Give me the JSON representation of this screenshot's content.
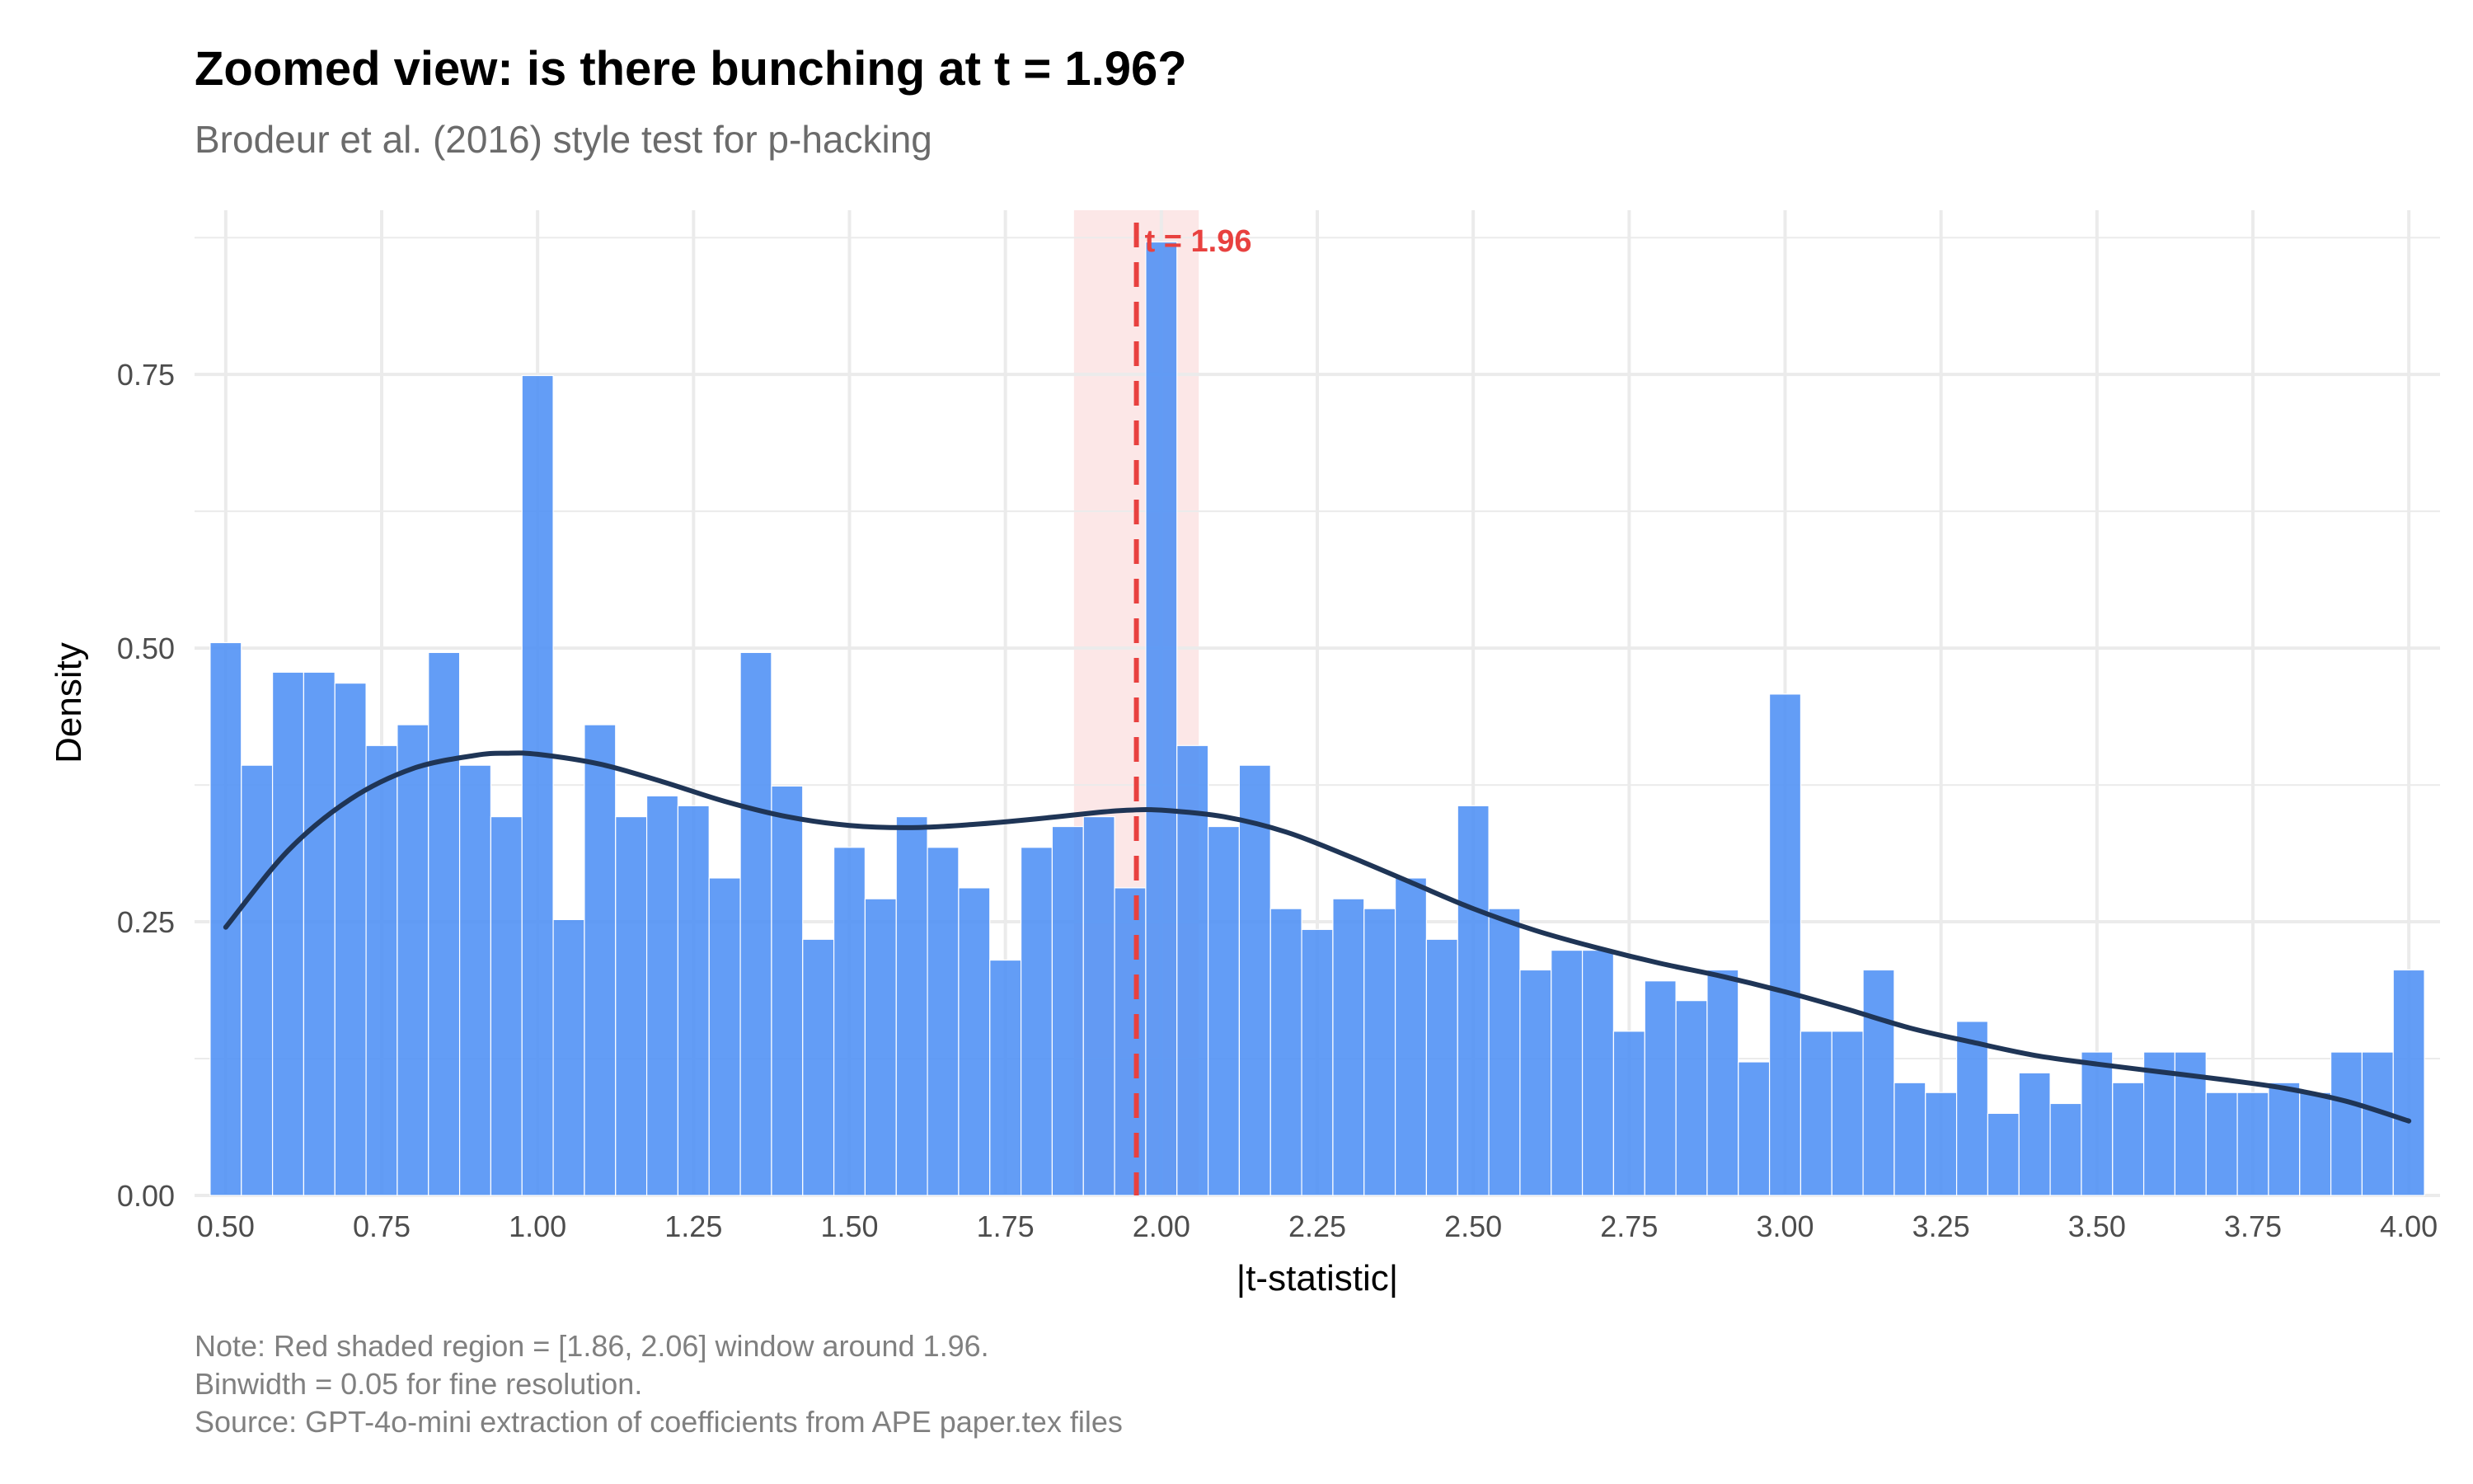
{
  "chart_data": {
    "type": "bar",
    "title": "Zoomed view: is there bunching at t = 1.96?",
    "subtitle": "Brodeur et al. (2016) style test for p-hacking",
    "xlabel": "|t-statistic|",
    "ylabel": "Density",
    "xlim": [
      0.45,
      4.05
    ],
    "ylim": [
      0,
      0.9
    ],
    "x_ticks": [
      0.5,
      0.75,
      1.0,
      1.25,
      1.5,
      1.75,
      2.0,
      2.25,
      2.5,
      2.75,
      3.0,
      3.25,
      3.5,
      3.75,
      4.0
    ],
    "x_tick_labels": [
      "0.50",
      "0.75",
      "1.00",
      "1.25",
      "1.50",
      "1.75",
      "2.00",
      "2.25",
      "2.50",
      "2.75",
      "3.00",
      "3.25",
      "3.50",
      "3.75",
      "4.00"
    ],
    "y_ticks": [
      0,
      0.25,
      0.5,
      0.75
    ],
    "y_tick_labels": [
      "0.00",
      "0.25",
      "0.50",
      "0.75"
    ],
    "binwidth": 0.05,
    "bin_start": 0.475,
    "values": [
      0.505,
      0.393,
      0.478,
      0.478,
      0.468,
      0.411,
      0.43,
      0.496,
      0.393,
      0.346,
      0.749,
      0.252,
      0.43,
      0.346,
      0.365,
      0.356,
      0.29,
      0.496,
      0.374,
      0.234,
      0.318,
      0.271,
      0.346,
      0.318,
      0.281,
      0.215,
      0.318,
      0.337,
      0.346,
      0.281,
      0.871,
      0.411,
      0.337,
      0.393,
      0.262,
      0.243,
      0.271,
      0.262,
      0.29,
      0.234,
      0.356,
      0.262,
      0.206,
      0.224,
      0.224,
      0.15,
      0.196,
      0.178,
      0.206,
      0.122,
      0.458,
      0.15,
      0.15,
      0.206,
      0.103,
      0.094,
      0.159,
      0.075,
      0.112,
      0.084,
      0.131,
      0.103,
      0.131,
      0.131,
      0.094,
      0.094,
      0.103,
      0.094,
      0.131,
      0.131,
      0.206
    ],
    "density_curve": {
      "x": [
        0.5,
        0.6,
        0.7,
        0.8,
        0.9,
        0.95,
        1.0,
        1.1,
        1.2,
        1.3,
        1.4,
        1.5,
        1.6,
        1.7,
        1.8,
        1.9,
        1.95,
        2.0,
        2.1,
        2.2,
        2.3,
        2.4,
        2.5,
        2.6,
        2.7,
        2.8,
        2.9,
        3.0,
        3.1,
        3.2,
        3.3,
        3.4,
        3.5,
        3.6,
        3.7,
        3.8,
        3.9,
        4.0
      ],
      "y": [
        0.245,
        0.315,
        0.362,
        0.39,
        0.402,
        0.404,
        0.403,
        0.394,
        0.378,
        0.36,
        0.346,
        0.338,
        0.336,
        0.339,
        0.344,
        0.35,
        0.352,
        0.352,
        0.346,
        0.332,
        0.31,
        0.286,
        0.262,
        0.242,
        0.226,
        0.212,
        0.2,
        0.186,
        0.17,
        0.153,
        0.14,
        0.128,
        0.12,
        0.113,
        0.106,
        0.098,
        0.086,
        0.068
      ]
    },
    "threshold": {
      "x": 1.96,
      "label": "t = 1.96"
    },
    "shaded_region": [
      1.86,
      2.06
    ],
    "bar_color": "#4D8FF5",
    "curve_color": "#1F3556",
    "threshold_color": "#E8413F",
    "shade_color": "#FBE3E3",
    "grid": true
  },
  "notes": [
    "Note: Red shaded region = [1.86, 2.06] window around 1.96.",
    "Binwidth = 0.05 for fine resolution.",
    "Source: GPT-4o-mini extraction of coefficients from APE paper.tex files"
  ]
}
